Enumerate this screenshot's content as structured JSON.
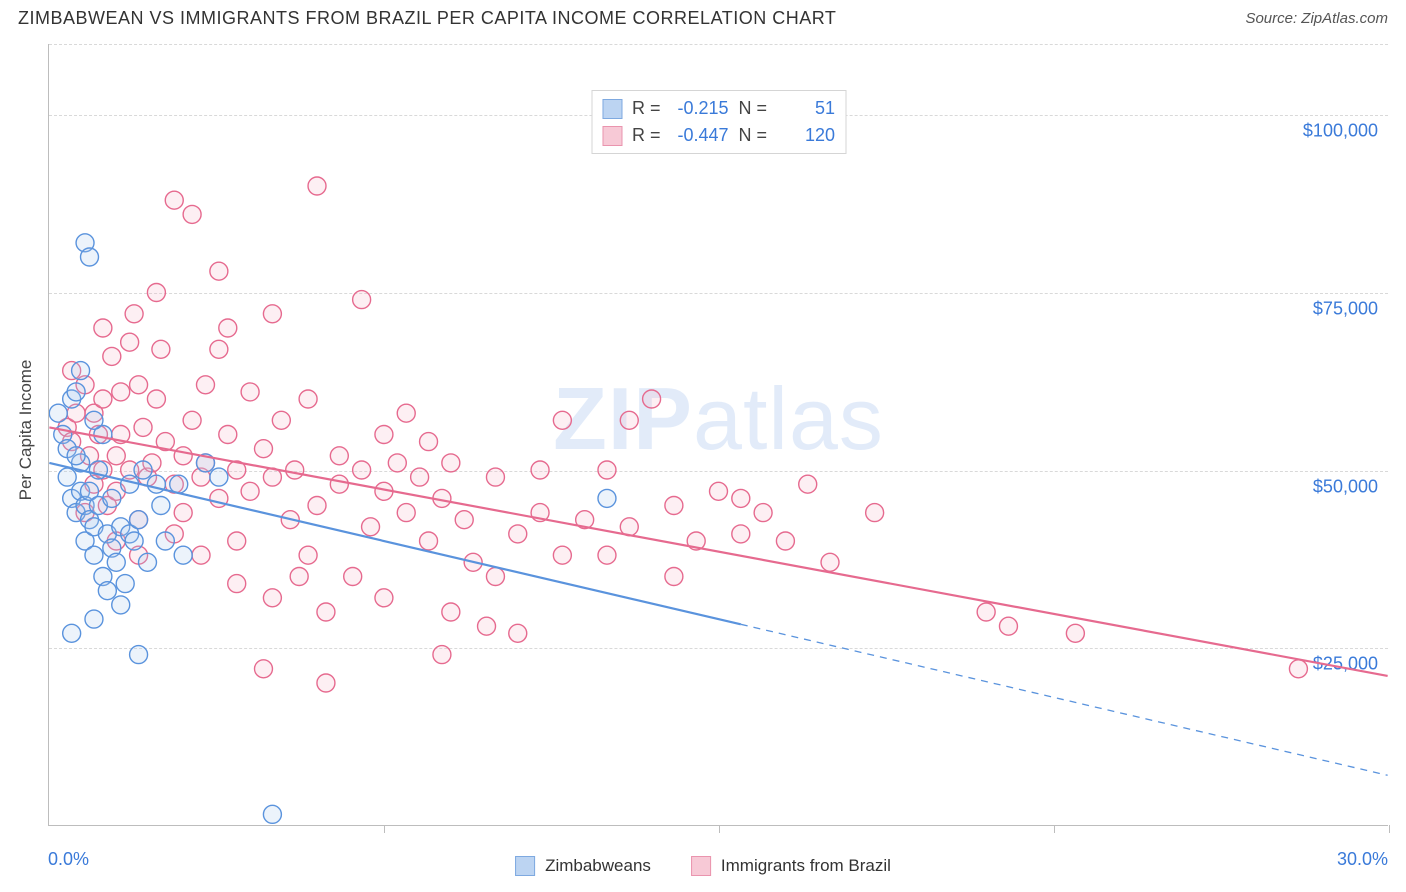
{
  "title": "ZIMBABWEAN VS IMMIGRANTS FROM BRAZIL PER CAPITA INCOME CORRELATION CHART",
  "source": "Source: ZipAtlas.com",
  "watermark_bold": "ZIP",
  "watermark_rest": "atlas",
  "y_axis_label": "Per Capita Income",
  "chart": {
    "type": "scatter",
    "background_color": "#ffffff",
    "grid_color": "#d9d9d9",
    "axis_color": "#bdbdbd",
    "tick_label_color": "#3a7ad9",
    "tick_fontsize": 18,
    "title_fontsize": 18,
    "title_color": "#333333",
    "xlim": [
      0.0,
      30.0
    ],
    "ylim": [
      0,
      110000
    ],
    "x_ticks": [
      0.0,
      7.5,
      15.0,
      22.5,
      30.0
    ],
    "x_tick_labels_shown": {
      "0": "0.0%",
      "30": "30.0%"
    },
    "y_gridlines": [
      25000,
      50000,
      75000,
      100000,
      110000
    ],
    "y_tick_labels": {
      "25000": "$25,000",
      "50000": "$50,000",
      "75000": "$75,000",
      "100000": "$100,000"
    },
    "marker_radius": 9,
    "marker_stroke_width": 1.4,
    "marker_fill_opacity": 0.22,
    "trend_line_width": 2.2
  },
  "series": {
    "zimbabweans": {
      "label": "Zimbabweans",
      "color_stroke": "#5a93dd",
      "color_fill": "#a9c7ef",
      "swatch_fill": "#bcd4f2",
      "swatch_border": "#7ea9e0",
      "R": "-0.215",
      "N": "51",
      "trend": {
        "x1": 0.0,
        "y1": 51000,
        "x2": 30.0,
        "y2": 7000,
        "solid_until_x": 15.5
      },
      "points": [
        [
          0.2,
          58000
        ],
        [
          0.3,
          55000
        ],
        [
          0.4,
          53000
        ],
        [
          0.4,
          49000
        ],
        [
          0.5,
          46000
        ],
        [
          0.5,
          60000
        ],
        [
          0.6,
          61000
        ],
        [
          0.6,
          44000
        ],
        [
          0.7,
          47000
        ],
        [
          0.7,
          51000
        ],
        [
          0.8,
          82000
        ],
        [
          0.9,
          80000
        ],
        [
          0.7,
          64000
        ],
        [
          0.8,
          45000
        ],
        [
          0.8,
          40000
        ],
        [
          0.9,
          43000
        ],
        [
          0.9,
          47000
        ],
        [
          1.0,
          38000
        ],
        [
          1.0,
          42000
        ],
        [
          1.1,
          45000
        ],
        [
          1.1,
          50000
        ],
        [
          1.2,
          55000
        ],
        [
          1.2,
          35000
        ],
        [
          1.3,
          33000
        ],
        [
          1.3,
          41000
        ],
        [
          1.4,
          39000
        ],
        [
          1.4,
          46000
        ],
        [
          1.5,
          37000
        ],
        [
          1.6,
          42000
        ],
        [
          1.6,
          31000
        ],
        [
          1.7,
          34000
        ],
        [
          1.8,
          41000
        ],
        [
          1.8,
          48000
        ],
        [
          1.9,
          40000
        ],
        [
          2.0,
          43000
        ],
        [
          2.1,
          50000
        ],
        [
          2.2,
          37000
        ],
        [
          2.4,
          48000
        ],
        [
          2.5,
          45000
        ],
        [
          2.6,
          40000
        ],
        [
          2.9,
          48000
        ],
        [
          3.0,
          38000
        ],
        [
          1.0,
          29000
        ],
        [
          0.5,
          27000
        ],
        [
          2.0,
          24000
        ],
        [
          5.0,
          1500
        ],
        [
          12.5,
          46000
        ],
        [
          3.5,
          51000
        ],
        [
          3.8,
          49000
        ],
        [
          1.0,
          57000
        ],
        [
          0.6,
          52000
        ]
      ]
    },
    "brazil": {
      "label": "Immigrants from Brazil",
      "color_stroke": "#e66a8f",
      "color_fill": "#f5b7c9",
      "swatch_fill": "#f7c9d6",
      "swatch_border": "#ea94ae",
      "R": "-0.447",
      "N": "120",
      "trend": {
        "x1": 0.0,
        "y1": 56000,
        "x2": 30.0,
        "y2": 21000,
        "solid_until_x": 30.0
      },
      "points": [
        [
          0.4,
          56000
        ],
        [
          0.5,
          54000
        ],
        [
          0.6,
          58000
        ],
        [
          0.8,
          62000
        ],
        [
          0.8,
          44000
        ],
        [
          0.9,
          52000
        ],
        [
          1.0,
          58000
        ],
        [
          1.0,
          48000
        ],
        [
          1.1,
          55000
        ],
        [
          1.2,
          60000
        ],
        [
          1.2,
          50000
        ],
        [
          1.3,
          45000
        ],
        [
          1.4,
          66000
        ],
        [
          1.5,
          52000
        ],
        [
          1.5,
          47000
        ],
        [
          1.6,
          55000
        ],
        [
          1.6,
          61000
        ],
        [
          1.8,
          68000
        ],
        [
          1.8,
          50000
        ],
        [
          1.9,
          72000
        ],
        [
          2.0,
          43000
        ],
        [
          2.0,
          62000
        ],
        [
          2.1,
          56000
        ],
        [
          2.2,
          49000
        ],
        [
          2.3,
          51000
        ],
        [
          2.4,
          60000
        ],
        [
          2.5,
          67000
        ],
        [
          2.6,
          54000
        ],
        [
          2.8,
          88000
        ],
        [
          2.8,
          48000
        ],
        [
          3.0,
          52000
        ],
        [
          3.0,
          44000
        ],
        [
          3.2,
          86000
        ],
        [
          3.2,
          57000
        ],
        [
          3.4,
          49000
        ],
        [
          3.5,
          62000
        ],
        [
          3.5,
          51000
        ],
        [
          3.8,
          46000
        ],
        [
          3.8,
          67000
        ],
        [
          4.0,
          70000
        ],
        [
          4.0,
          55000
        ],
        [
          4.2,
          50000
        ],
        [
          4.2,
          40000
        ],
        [
          4.5,
          61000
        ],
        [
          4.5,
          47000
        ],
        [
          4.8,
          53000
        ],
        [
          4.8,
          22000
        ],
        [
          5.0,
          49000
        ],
        [
          5.0,
          72000
        ],
        [
          5.2,
          57000
        ],
        [
          5.4,
          43000
        ],
        [
          5.5,
          50000
        ],
        [
          5.8,
          60000
        ],
        [
          5.8,
          38000
        ],
        [
          6.0,
          45000
        ],
        [
          6.0,
          90000
        ],
        [
          6.2,
          30000
        ],
        [
          6.5,
          52000
        ],
        [
          6.5,
          48000
        ],
        [
          6.8,
          35000
        ],
        [
          7.0,
          74000
        ],
        [
          7.0,
          50000
        ],
        [
          7.2,
          42000
        ],
        [
          7.5,
          55000
        ],
        [
          7.5,
          47000
        ],
        [
          7.8,
          51000
        ],
        [
          8.0,
          58000
        ],
        [
          8.0,
          44000
        ],
        [
          8.3,
          49000
        ],
        [
          8.5,
          54000
        ],
        [
          8.5,
          40000
        ],
        [
          8.8,
          46000
        ],
        [
          9.0,
          30000
        ],
        [
          9.0,
          51000
        ],
        [
          9.3,
          43000
        ],
        [
          9.5,
          37000
        ],
        [
          9.8,
          28000
        ],
        [
          10.0,
          35000
        ],
        [
          10.0,
          49000
        ],
        [
          10.5,
          41000
        ],
        [
          10.5,
          27000
        ],
        [
          11.0,
          44000
        ],
        [
          11.0,
          50000
        ],
        [
          11.5,
          38000
        ],
        [
          11.5,
          57000
        ],
        [
          12.0,
          43000
        ],
        [
          12.5,
          50000
        ],
        [
          12.5,
          38000
        ],
        [
          13.0,
          57000
        ],
        [
          13.0,
          42000
        ],
        [
          13.5,
          60000
        ],
        [
          14.0,
          45000
        ],
        [
          14.0,
          35000
        ],
        [
          14.5,
          40000
        ],
        [
          15.0,
          47000
        ],
        [
          15.5,
          46000
        ],
        [
          15.5,
          41000
        ],
        [
          16.0,
          44000
        ],
        [
          16.5,
          40000
        ],
        [
          17.0,
          48000
        ],
        [
          17.5,
          37000
        ],
        [
          18.5,
          44000
        ],
        [
          21.0,
          30000
        ],
        [
          21.5,
          28000
        ],
        [
          23.0,
          27000
        ],
        [
          28.0,
          22000
        ],
        [
          0.5,
          64000
        ],
        [
          1.2,
          70000
        ],
        [
          2.4,
          75000
        ],
        [
          3.8,
          78000
        ],
        [
          1.5,
          40000
        ],
        [
          2.0,
          38000
        ],
        [
          2.8,
          41000
        ],
        [
          3.4,
          38000
        ],
        [
          4.2,
          34000
        ],
        [
          5.0,
          32000
        ],
        [
          5.6,
          35000
        ],
        [
          7.5,
          32000
        ],
        [
          6.2,
          20000
        ],
        [
          8.8,
          24000
        ]
      ]
    }
  },
  "stats_legend": {
    "R_label": "R =",
    "N_label": "N ="
  }
}
